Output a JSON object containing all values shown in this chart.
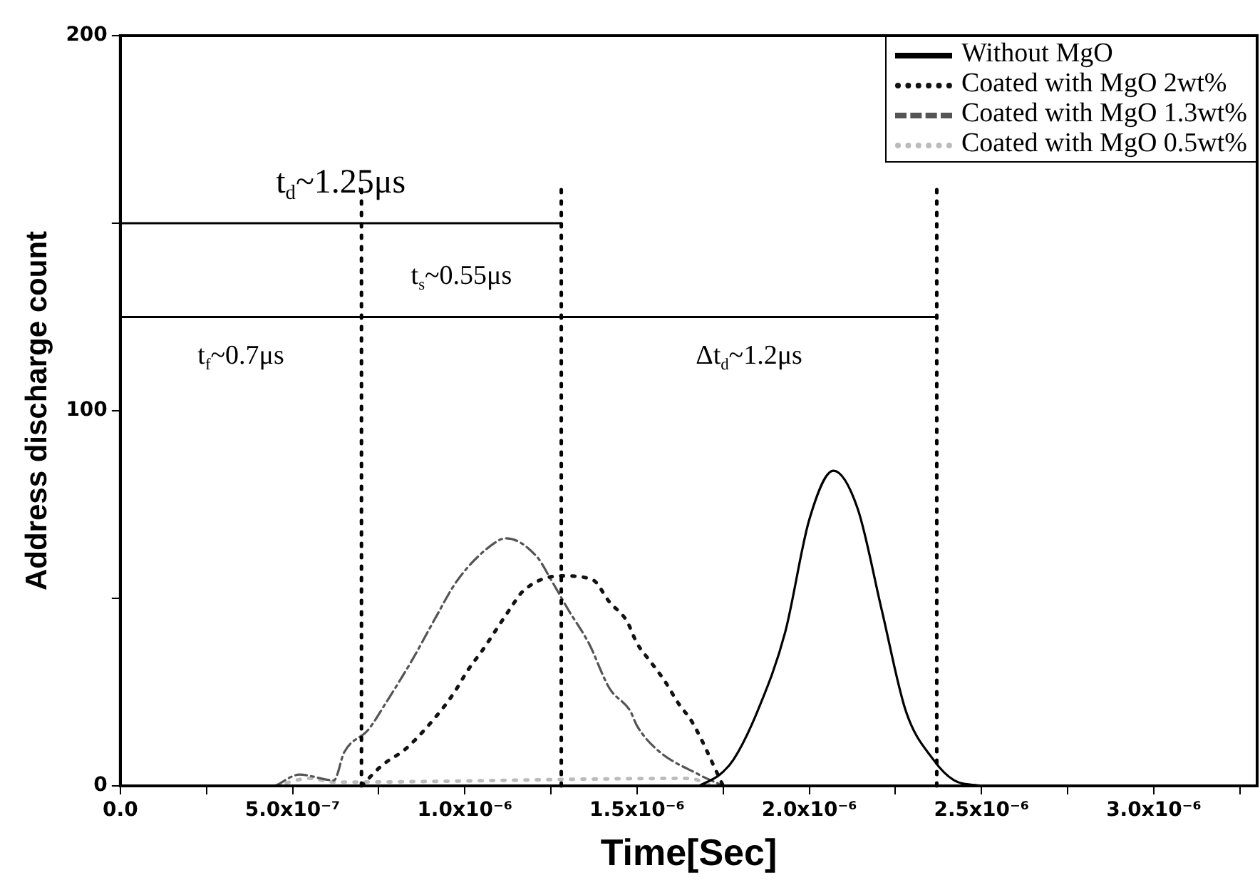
{
  "chart_data": {
    "type": "line",
    "xlabel": "Time[Sec]",
    "ylabel": "Address discharge count",
    "xlim": [
      0,
      3.3e-06
    ],
    "ylim": [
      0,
      200
    ],
    "xticks": [
      {
        "value": 0,
        "label": "0.0"
      },
      {
        "value": 2.5e-07,
        "label": null
      },
      {
        "value": 5e-07,
        "label": "5.0x10⁻⁷"
      },
      {
        "value": 7.5e-07,
        "label": null
      },
      {
        "value": 1e-06,
        "label": "1.0x10⁻⁶"
      },
      {
        "value": 1.25e-06,
        "label": null
      },
      {
        "value": 1.5e-06,
        "label": "1.5x10⁻⁶"
      },
      {
        "value": 1.75e-06,
        "label": null
      },
      {
        "value": 2e-06,
        "label": "2.0x10⁻⁶"
      },
      {
        "value": 2.25e-06,
        "label": null
      },
      {
        "value": 2.5e-06,
        "label": "2.5x10⁻⁶"
      },
      {
        "value": 2.75e-06,
        "label": null
      },
      {
        "value": 3e-06,
        "label": "3.0x10⁻⁶"
      },
      {
        "value": 3.25e-06,
        "label": null
      }
    ],
    "yticks": [
      0,
      {
        "value": 50,
        "label": null
      },
      100,
      {
        "value": 150,
        "label": null
      },
      200
    ],
    "grid": false,
    "legend": "top right",
    "marker": "none",
    "series": [
      {
        "name": "Without MgO",
        "color": "#000000",
        "line_style": "solid",
        "x": [
          1.68e-06,
          1.74e-06,
          1.78e-06,
          1.85e-06,
          1.93e-06,
          2e-06,
          2.07e-06,
          2.14e-06,
          2.21e-06,
          2.28e-06,
          2.36e-06,
          2.42e-06,
          2.5e-06
        ],
        "values": [
          0,
          3,
          7,
          20,
          41,
          71,
          84,
          74,
          47,
          20,
          7,
          1.5,
          0
        ]
      },
      {
        "name": "Coated with MgO 2wt%",
        "color": "#111111",
        "line_style": "dotted",
        "x": [
          7e-07,
          7.6e-07,
          8.3e-07,
          9.3e-07,
          9.7e-07,
          1.01e-06,
          1.05e-06,
          1.13e-06,
          1.17e-06,
          1.28e-06,
          1.37e-06,
          1.42e-06,
          1.47e-06,
          1.5e-06,
          1.54e-06,
          1.58e-06,
          1.62e-06,
          1.66e-06,
          1.75e-06
        ],
        "values": [
          0,
          5.5,
          10,
          20,
          25,
          31,
          36,
          47,
          52,
          56,
          55,
          49,
          44,
          38,
          33,
          28,
          22,
          17,
          0
        ]
      },
      {
        "name": "Coated with MgO 1.3wt%",
        "color": "#555555",
        "line_style": "dashed",
        "x": [
          4.5e-07,
          5.2e-07,
          6.2e-07,
          6.5e-07,
          7.2e-07,
          7.7e-07,
          8.5e-07,
          9.1e-07,
          9.8e-07,
          1.09e-06,
          1.12e-06,
          1.21e-06,
          1.25e-06,
          1.3e-06,
          1.36e-06,
          1.42e-06,
          1.48e-06,
          1.5e-06,
          1.56e-06,
          1.68e-06,
          1.75e-06
        ],
        "values": [
          0,
          3,
          1.5,
          9,
          15,
          22,
          34,
          44,
          55,
          65,
          66,
          61,
          55,
          47,
          38,
          26,
          20,
          16,
          9.5,
          3,
          0
        ]
      },
      {
        "name": "Coated with MgO 0.5wt%",
        "color": "#bbbbbb",
        "line_style": "dotted",
        "x": [
          4.5e-07,
          5.5e-07,
          6.2e-07,
          1.65e-06,
          1.72e-06
        ],
        "values": [
          0,
          2,
          1,
          2,
          0
        ]
      },
      {
        "color": "#000000",
        "line_style": "solid",
        "x": [
          0,
          1.28e-06
        ],
        "values": [
          150,
          150
        ]
      },
      {
        "color": "#000000",
        "line_style": "solid",
        "x": [
          0,
          7e-07
        ],
        "values": [
          125,
          125
        ]
      },
      {
        "color": "#000000",
        "line_style": "solid",
        "x": [
          7e-07,
          1.28e-06
        ],
        "values": [
          125,
          125
        ]
      },
      {
        "color": "#000000",
        "line_style": "solid",
        "x": [
          1.28e-06,
          2.37e-06
        ],
        "values": [
          125,
          125
        ]
      }
    ],
    "ref_lines": [
      {
        "axis": "x",
        "value": 7e-07,
        "line_style": "dotted"
      },
      {
        "axis": "x",
        "value": 1.28e-06,
        "line_style": "dotted"
      },
      {
        "axis": "x",
        "value": 2.37e-06,
        "line_style": "dotted"
      }
    ],
    "annotations": [
      "t$_{d}$~1.25μs",
      "t$_{f}$~0.7μs",
      "t$_{s}$~0.55μs",
      "Δt$_{d}$~1.2μs"
    ]
  }
}
